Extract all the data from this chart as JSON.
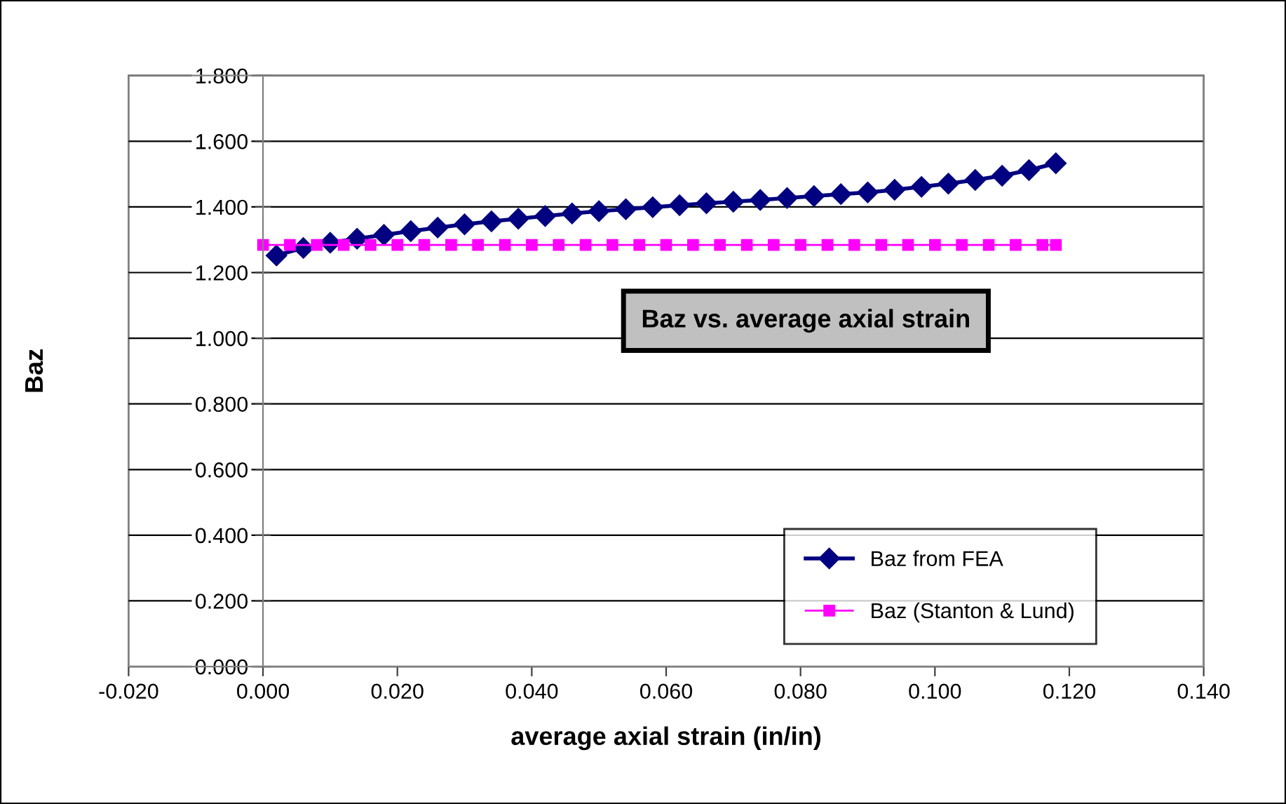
{
  "chart_data": {
    "type": "line",
    "title": "Baz vs. average axial strain",
    "xlabel": "average axial strain (in/in)",
    "ylabel": "Baz",
    "xlim": [
      -0.02,
      0.14
    ],
    "xticks": [
      {
        "value": -0.02,
        "label": "-0.020"
      },
      {
        "value": 0,
        "label": "0.000"
      },
      {
        "value": 0.02,
        "label": "0.020"
      },
      {
        "value": 0.04,
        "label": "0.040"
      },
      {
        "value": 0.06,
        "label": "0.060"
      },
      {
        "value": 0.08,
        "label": "0.080"
      },
      {
        "value": 0.1,
        "label": "0.100"
      },
      {
        "value": 0.12,
        "label": "0.120"
      },
      {
        "value": 0.14,
        "label": "0.140"
      }
    ],
    "ylim": [
      0,
      1.8
    ],
    "yticks": [
      {
        "value": 0,
        "label": "0.000"
      },
      {
        "value": 0.2,
        "label": "0.200"
      },
      {
        "value": 0.4,
        "label": "0.400"
      },
      {
        "value": 0.6,
        "label": "0.600"
      },
      {
        "value": 0.8,
        "label": "0.800"
      },
      {
        "value": 1.0,
        "label": "1.000"
      },
      {
        "value": 1.2,
        "label": "1.200"
      },
      {
        "value": 1.4,
        "label": "1.400"
      },
      {
        "value": 1.6,
        "label": "1.600"
      },
      {
        "value": 1.8,
        "label": "1.800"
      }
    ],
    "grid": "y",
    "legend": "bottom right",
    "series": [
      {
        "name": "Baz from FEA",
        "color": "#000080",
        "marker": "diamond",
        "x": [
          0.002,
          0.006,
          0.01,
          0.014,
          0.018,
          0.022,
          0.026,
          0.03,
          0.034,
          0.038,
          0.042,
          0.046,
          0.05,
          0.054,
          0.058,
          0.062,
          0.066,
          0.07,
          0.074,
          0.078,
          0.082,
          0.086,
          0.09,
          0.094,
          0.098,
          0.102,
          0.106,
          0.11,
          0.114,
          0.118
        ],
        "values": [
          1.252,
          1.275,
          1.291,
          1.303,
          1.315,
          1.326,
          1.337,
          1.347,
          1.356,
          1.364,
          1.372,
          1.38,
          1.387,
          1.393,
          1.399,
          1.405,
          1.411,
          1.416,
          1.421,
          1.427,
          1.433,
          1.439,
          1.444,
          1.452,
          1.461,
          1.471,
          1.482,
          1.495,
          1.512,
          1.533
        ]
      },
      {
        "name": "Baz (Stanton & Lund)",
        "color": "#ff00ff",
        "marker": "square",
        "x": [
          0.0,
          0.004,
          0.008,
          0.012,
          0.016,
          0.02,
          0.024,
          0.028,
          0.032,
          0.036,
          0.04,
          0.044,
          0.048,
          0.052,
          0.056,
          0.06,
          0.064,
          0.068,
          0.072,
          0.076,
          0.08,
          0.084,
          0.088,
          0.092,
          0.096,
          0.1,
          0.104,
          0.108,
          0.112,
          0.116,
          0.118
        ],
        "values": [
          1.284,
          1.284,
          1.284,
          1.284,
          1.284,
          1.284,
          1.284,
          1.284,
          1.284,
          1.284,
          1.284,
          1.284,
          1.284,
          1.284,
          1.284,
          1.284,
          1.284,
          1.284,
          1.284,
          1.284,
          1.284,
          1.284,
          1.284,
          1.284,
          1.284,
          1.284,
          1.284,
          1.284,
          1.284,
          1.284,
          1.284
        ]
      }
    ]
  }
}
